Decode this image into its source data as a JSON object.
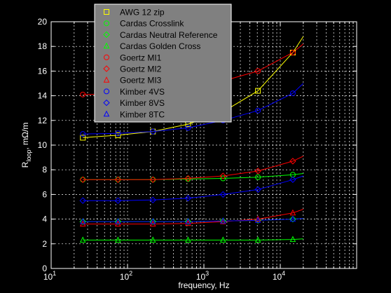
{
  "chart_data": {
    "type": "line",
    "xscale": "log",
    "xlim": [
      10,
      100000
    ],
    "ylim": [
      0,
      20
    ],
    "xlabel": "frequency, Hz",
    "ylabel_main": "R",
    "ylabel_sub": "loop",
    "ylabel_rest": ", mΩ/m",
    "grid": true,
    "legend_placement": "top-left",
    "x_ticks": [
      {
        "value": 10,
        "base": "10",
        "exp": "1"
      },
      {
        "value": 100,
        "base": "10",
        "exp": "2"
      },
      {
        "value": 1000,
        "base": "10",
        "exp": "3"
      },
      {
        "value": 10000,
        "base": "10",
        "exp": "4"
      }
    ],
    "y_ticks": [
      0,
      2,
      4,
      6,
      8,
      10,
      12,
      14,
      16,
      18,
      20
    ],
    "marker_x": [
      26,
      75,
      215,
      620,
      1780,
      5100,
      14600
    ],
    "series": [
      {
        "name": "AWG 12 zip",
        "color": "#ffff00",
        "marker": "square",
        "x": [
          26,
          75,
          215,
          620,
          1780,
          5100,
          14600,
          20000
        ],
        "y": [
          10.6,
          10.8,
          11.1,
          11.7,
          12.7,
          14.4,
          17.5,
          18.8
        ]
      },
      {
        "name": "Cardas Crosslink",
        "color": "#00ff00",
        "marker": "circle",
        "x": [
          26,
          75,
          215,
          620,
          1780,
          5100,
          14600,
          20000
        ],
        "y": [
          7.2,
          7.2,
          7.2,
          7.25,
          7.3,
          7.4,
          7.6,
          7.7
        ]
      },
      {
        "name": "Cardas Neutral Reference",
        "color": "#00ff00",
        "marker": "diamond",
        "x": [
          26,
          75,
          215,
          620,
          1780,
          5100,
          14600,
          20000
        ],
        "y": [
          3.8,
          3.8,
          3.8,
          3.8,
          3.85,
          3.9,
          4.0,
          4.05
        ]
      },
      {
        "name": "Cardas Golden Cross",
        "color": "#00ff00",
        "marker": "triangle",
        "x": [
          26,
          75,
          215,
          620,
          1780,
          5100,
          14600,
          20000
        ],
        "y": [
          2.3,
          2.3,
          2.3,
          2.3,
          2.3,
          2.3,
          2.35,
          2.4
        ]
      },
      {
        "name": "Goertz MI1",
        "color": "#ff0000",
        "marker": "circle",
        "x": [
          26,
          75,
          215,
          620,
          1780,
          5100,
          14600,
          20000
        ],
        "y": [
          14.1,
          14.1,
          14.2,
          14.5,
          15.2,
          16.0,
          17.5,
          18.2
        ]
      },
      {
        "name": "Goertz MI2",
        "color": "#ff0000",
        "marker": "diamond",
        "x": [
          26,
          75,
          215,
          620,
          1780,
          5100,
          14600,
          20000
        ],
        "y": [
          7.2,
          7.2,
          7.2,
          7.3,
          7.5,
          7.9,
          8.7,
          9.1
        ]
      },
      {
        "name": "Goertz MI3",
        "color": "#ff0000",
        "marker": "triangle",
        "x": [
          26,
          75,
          215,
          620,
          1780,
          5100,
          14600,
          20000
        ],
        "y": [
          3.6,
          3.6,
          3.6,
          3.65,
          3.8,
          4.0,
          4.5,
          4.8
        ]
      },
      {
        "name": "Kimber 4VS",
        "color": "#0000ff",
        "marker": "circle",
        "x": [
          26,
          75,
          215,
          620,
          1780,
          5100,
          14600,
          20000
        ],
        "y": [
          10.9,
          10.95,
          11.1,
          11.4,
          12.0,
          12.8,
          14.2,
          15.0
        ]
      },
      {
        "name": "Kimber 8VS",
        "color": "#0000ff",
        "marker": "diamond",
        "x": [
          26,
          75,
          215,
          620,
          1780,
          5100,
          14600,
          20000
        ],
        "y": [
          5.5,
          5.5,
          5.55,
          5.7,
          6.0,
          6.4,
          7.2,
          7.5
        ]
      },
      {
        "name": "Kimber 8TC",
        "color": "#0000ff",
        "marker": "triangle",
        "x": [
          26,
          75,
          215,
          620,
          1780,
          5100,
          14600,
          20000
        ],
        "y": [
          3.8,
          3.8,
          3.8,
          3.8,
          3.85,
          3.9,
          4.0,
          4.05
        ]
      }
    ]
  }
}
